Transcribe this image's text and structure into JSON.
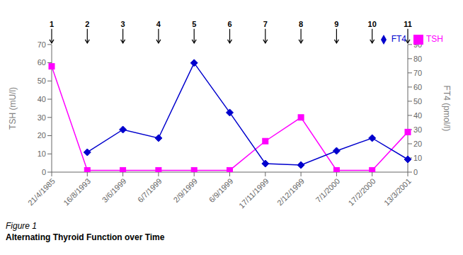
{
  "chart_data": {
    "type": "line",
    "title": "Alternating Thyroid Function over Time",
    "subtitle": "Figure 1",
    "categories": [
      "21/4/1985",
      "16/8/1993",
      "3/6/1999",
      "6/7/1999",
      "2/9/1999",
      "6/9/1999",
      "17/11/1999",
      "2/12/1999",
      "7/1/2000",
      "17/2/2000",
      "13/3/2001"
    ],
    "series": [
      {
        "name": "TSH",
        "color": "#FF00FF",
        "marker": "square",
        "values": [
          58,
          1,
          1,
          1,
          1,
          1,
          17,
          30,
          1,
          1,
          22
        ]
      },
      {
        "name": "FT4",
        "color": "#0000CD",
        "marker": "diamond",
        "axis": "y2",
        "values": [
          null,
          14,
          30,
          24,
          77,
          42,
          6,
          5,
          15,
          24,
          9
        ]
      }
    ],
    "y_label": "TSH (mU/l)",
    "y2_label": "FT4 (pmol/l)",
    "ylim": [
      0,
      70
    ],
    "yticks": [
      0,
      10,
      20,
      30,
      40,
      50,
      60,
      70
    ],
    "y2lim": [
      0,
      90
    ],
    "y2ticks": [
      0,
      10,
      20,
      30,
      40,
      50,
      60,
      70,
      80,
      90
    ],
    "legend": "upper right",
    "annotations": [
      {
        "x": "21/4/1985",
        "text": "1"
      },
      {
        "x": "16/8/1993",
        "text": "2"
      },
      {
        "x": "3/6/1999",
        "text": "3"
      },
      {
        "x": "6/7/1999",
        "text": "4"
      },
      {
        "x": "2/9/1999",
        "text": "5"
      },
      {
        "x": "6/9/1999",
        "text": "6"
      },
      {
        "x": "17/11/1999",
        "text": "7"
      },
      {
        "x": "2/12/1999",
        "text": "8"
      },
      {
        "x": "7/1/2000",
        "text": "9"
      },
      {
        "x": "17/2/2000",
        "text": "10"
      },
      {
        "x": "13/3/2001",
        "text": "11"
      }
    ]
  }
}
